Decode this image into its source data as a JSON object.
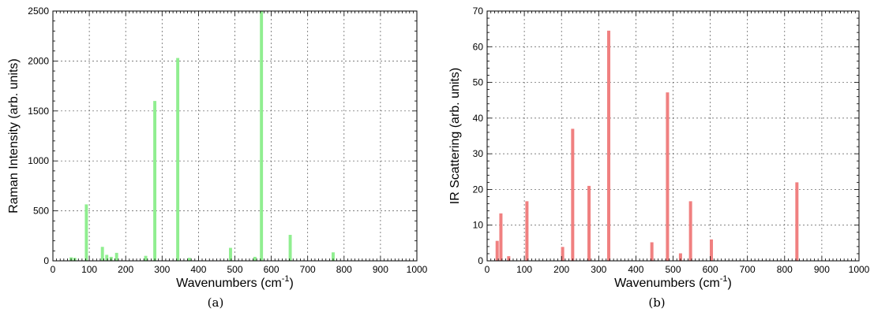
{
  "chart_data": [
    {
      "type": "bar",
      "panel": "(a)",
      "xlabel": "Wavenumbers (cm",
      "xlabel_sup": "-1",
      "xlabel_suffix": ")",
      "ylabel": "Raman Intensity (arb. units)",
      "xlim": [
        0,
        1000
      ],
      "ylim": [
        0,
        2500
      ],
      "xticks": [
        0,
        100,
        200,
        300,
        400,
        500,
        600,
        700,
        800,
        900,
        1000
      ],
      "yticks": [
        0,
        500,
        1000,
        1500,
        2000,
        2500
      ],
      "grid": true,
      "color": "#90ee90",
      "x": [
        50,
        60,
        92,
        136,
        148,
        160,
        175,
        255,
        280,
        343,
        375,
        488,
        555,
        573,
        652,
        770
      ],
      "values": [
        35,
        30,
        565,
        140,
        60,
        40,
        80,
        50,
        1600,
        2030,
        30,
        130,
        40,
        2500,
        260,
        85
      ]
    },
    {
      "type": "bar",
      "panel": "(b)",
      "xlabel": "Wavenumbers (cm",
      "xlabel_sup": "-1",
      "xlabel_suffix": ")",
      "ylabel": "IR Scattering (arb. units)",
      "xlim": [
        0,
        1000
      ],
      "ylim": [
        0,
        70
      ],
      "xticks": [
        0,
        100,
        200,
        300,
        400,
        500,
        600,
        700,
        800,
        900,
        1000
      ],
      "yticks": [
        0,
        10,
        20,
        30,
        40,
        50,
        60,
        70
      ],
      "grid": true,
      "color": "#f08080",
      "x": [
        27,
        37,
        58,
        107,
        203,
        230,
        274,
        327,
        443,
        485,
        520,
        547,
        603,
        833
      ],
      "values": [
        5.6,
        13.3,
        1.3,
        16.7,
        3.9,
        37,
        21,
        64.5,
        5.2,
        47.2,
        2.1,
        16.7,
        6,
        22
      ]
    }
  ]
}
